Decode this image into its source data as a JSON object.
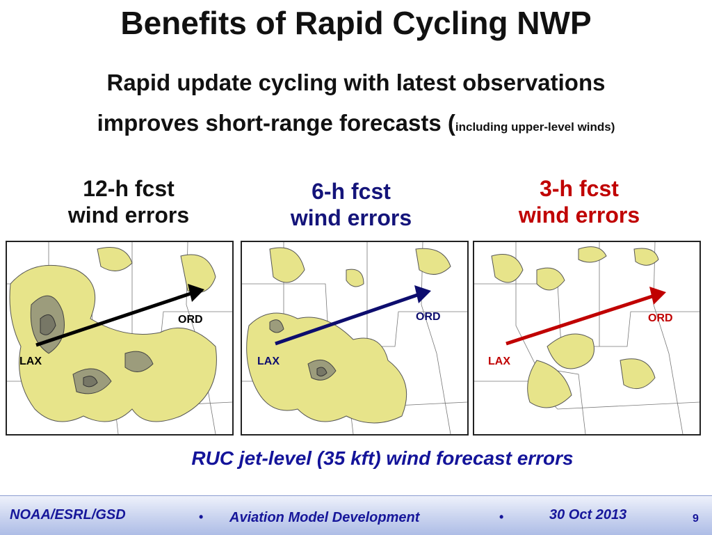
{
  "slide": {
    "title": "Benefits of Rapid Cycling NWP",
    "subtitle_line1": "Rapid update cycling with latest observations",
    "subtitle_line2_main": "improves short-range forecasts (",
    "subtitle_line2_small": "including upper-level winds)",
    "caption": "RUC jet-level (35 kft) wind forecast errors"
  },
  "panels": [
    {
      "header_line1": "12-h fcst",
      "header_line2": "wind errors",
      "header_color": "#111111",
      "arrow_color": "#000000",
      "start_label": "LAX",
      "end_label": "ORD"
    },
    {
      "header_line1": "6-h fcst",
      "header_line2": "wind errors",
      "header_color": "#14147a",
      "arrow_color": "#0d0d6e",
      "start_label": "LAX",
      "end_label": "ORD"
    },
    {
      "header_line1": "3-h fcst",
      "header_line2": "wind errors",
      "header_color": "#c00000",
      "arrow_color": "#c00000",
      "start_label": "LAX",
      "end_label": "ORD"
    }
  ],
  "footer": {
    "org": "NOAA/ESRL/GSD",
    "bullet": "•",
    "project": "Aviation Model Development",
    "date": "30 Oct 2013",
    "page_number": "9"
  },
  "colors": {
    "contour_fill": "#e7e48a",
    "contour_fill_dark": "#9c9c7c",
    "contour_fill_darkest": "#777766",
    "footer_text": "#16169a"
  }
}
